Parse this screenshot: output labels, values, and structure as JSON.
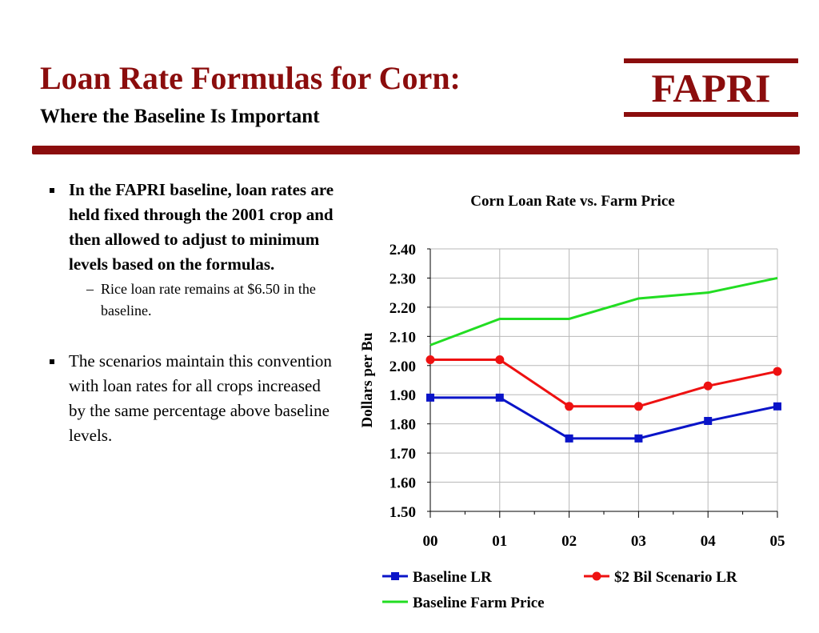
{
  "slide": {
    "title": "Loan Rate Formulas for Corn:",
    "subtitle": "Where the Baseline Is Important",
    "logo_text": "FAPRI",
    "accent_color": "#8b0d0d"
  },
  "bullets": [
    {
      "text": "In the FAPRI baseline, loan rates are held fixed through the 2001 crop and then allowed to adjust to minimum levels based on the formulas.",
      "sub": "Rice loan rate remains at $6.50 in the baseline."
    },
    {
      "text": "The scenarios maintain this convention with loan rates for all crops increased by the same percentage above baseline levels."
    }
  ],
  "chart_data": {
    "type": "line",
    "title": "Corn Loan Rate vs. Farm Price",
    "ylabel": "Dollars per Bu",
    "xlabel": "",
    "categories": [
      "00",
      "01",
      "02",
      "03",
      "04",
      "05"
    ],
    "ylim": [
      1.5,
      2.4
    ],
    "yticks": [
      "1.50",
      "1.60",
      "1.70",
      "1.80",
      "1.90",
      "2.00",
      "2.10",
      "2.20",
      "2.30",
      "2.40"
    ],
    "grid": true,
    "legend_position": "bottom",
    "series": [
      {
        "name": "Baseline LR",
        "color": "#0a14c8",
        "marker": "square",
        "values": [
          1.89,
          1.89,
          1.75,
          1.75,
          1.81,
          1.86
        ]
      },
      {
        "name": "$2 Bil Scenario LR",
        "color": "#ee1111",
        "marker": "circle",
        "values": [
          2.02,
          2.02,
          1.86,
          1.86,
          1.93,
          1.98
        ]
      },
      {
        "name": "Baseline Farm Price",
        "color": "#22dd22",
        "marker": "none",
        "values": [
          2.07,
          2.16,
          2.16,
          2.23,
          2.25,
          2.3
        ]
      }
    ]
  }
}
